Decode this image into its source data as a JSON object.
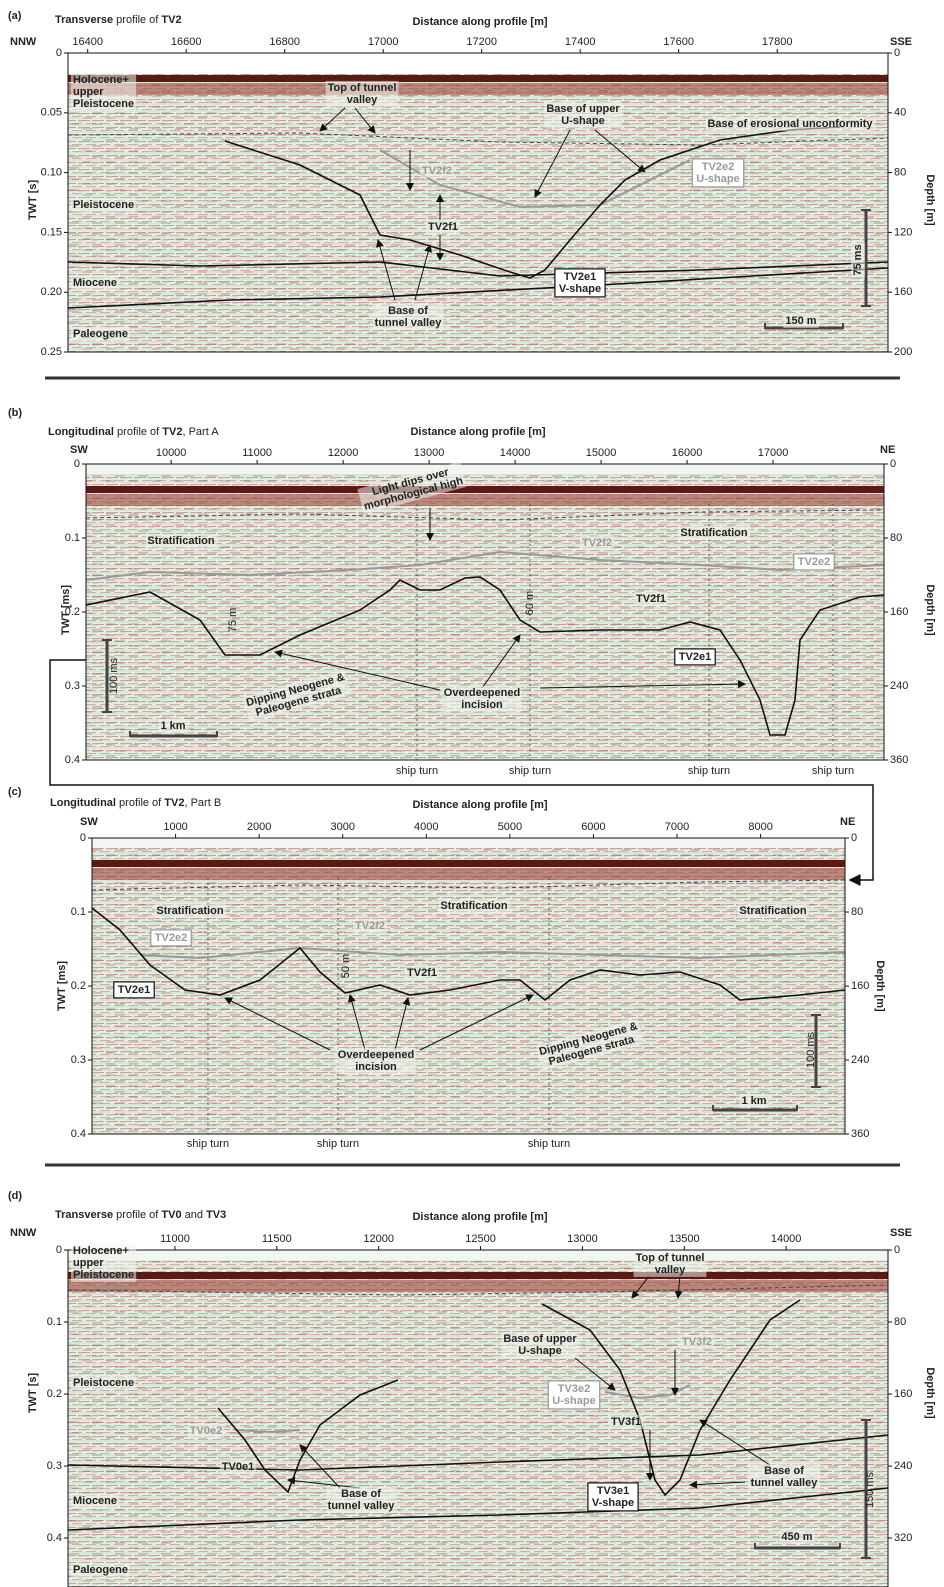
{
  "panels": [
    {
      "label": "(a)",
      "title": [
        {
          "text": "Transverse",
          "bold": true
        },
        {
          "text": " profile of ",
          "bold": false
        },
        {
          "text": "TV2",
          "bold": true
        }
      ],
      "x_label": "Distance along profile [m]",
      "left_end": "NNW",
      "right_end": "SSE",
      "xlim": [
        16360,
        18025
      ],
      "x_ticks": [
        16400,
        16600,
        16800,
        17000,
        17200,
        17400,
        17600,
        17800
      ],
      "y_label": "TWT [s]",
      "twt_lim": [
        0,
        0.25
      ],
      "y_ticks": [
        0,
        0.05,
        {
          "value": 0.1,
          "label": "0.10"
        },
        0.15,
        {
          "value": 0.2,
          "label": "0.20"
        },
        0.25
      ],
      "depth_label": "Depth [m]",
      "depth_ticks": [
        0,
        40,
        80,
        120,
        160,
        200
      ],
      "annotations": [
        {
          "lines": [
            "Holocene+",
            "upper",
            "Pleistocene"
          ],
          "style": "plain"
        },
        {
          "lines": [
            "Top of tunnel",
            "valley"
          ],
          "style": "plain"
        },
        {
          "lines": [
            "Base of upper",
            "U-shape"
          ],
          "style": "plain"
        },
        {
          "lines": [
            "Base of erosional unconformity"
          ],
          "style": "plain"
        },
        {
          "lines": [
            "TV2f2"
          ],
          "style": "gray"
        },
        {
          "lines": [
            "TV2e2",
            "U-shape"
          ],
          "style": "graybox"
        },
        {
          "lines": [
            "Pleistocene"
          ],
          "style": "plain"
        },
        {
          "lines": [
            "TV2f1"
          ],
          "style": "plain"
        },
        {
          "lines": [
            "Miocene"
          ],
          "style": "plain"
        },
        {
          "lines": [
            "TV2e1",
            "V-shape"
          ],
          "style": "box"
        },
        {
          "lines": [
            "Base of",
            "tunnel valley"
          ],
          "style": "plain"
        },
        {
          "lines": [
            "Paleogene"
          ],
          "style": "plain"
        },
        {
          "lines": [
            "75 ms"
          ],
          "style": "plain"
        },
        {
          "lines": [
            "150 m"
          ],
          "style": "plain"
        }
      ]
    },
    {
      "label": "(b)",
      "title": [
        {
          "text": "Longitudinal",
          "bold": true
        },
        {
          "text": " profile of ",
          "bold": false
        },
        {
          "text": "TV2",
          "bold": true
        },
        {
          "text": ", Part A",
          "bold": false
        }
      ],
      "x_label": "Distance along profile [m]",
      "left_end": "SW",
      "right_end": "NE",
      "xlim": [
        9010,
        18290
      ],
      "x_ticks": [
        10000,
        11000,
        12000,
        13000,
        14000,
        15000,
        16000,
        17000
      ],
      "y_label": "TWT [ms]",
      "twt_lim": [
        0,
        0.4
      ],
      "y_ticks": [
        0,
        0.1,
        0.2,
        0.3,
        0.4
      ],
      "depth_label": "Depth [m]",
      "depth_ticks": [
        0,
        80,
        160,
        240,
        360
      ],
      "ship_turns": [
        "ship turn",
        "ship turn",
        "ship turn",
        "ship turn"
      ],
      "annotations": [
        {
          "lines": [
            "Light dips over",
            "morphological high"
          ],
          "style": "plain"
        },
        {
          "lines": [
            "Stratification"
          ],
          "style": "plain"
        },
        {
          "lines": [
            "Stratification"
          ],
          "style": "plain"
        },
        {
          "lines": [
            "TV2f2"
          ],
          "style": "gray"
        },
        {
          "lines": [
            "TV2e2"
          ],
          "style": "graybox"
        },
        {
          "lines": [
            "75 m"
          ],
          "style": "thin"
        },
        {
          "lines": [
            "60 m"
          ],
          "style": "thin"
        },
        {
          "lines": [
            "TV2f1"
          ],
          "style": "plain"
        },
        {
          "lines": [
            "TV2e1"
          ],
          "style": "box"
        },
        {
          "lines": [
            "100 ms"
          ],
          "style": "thin"
        },
        {
          "lines": [
            "Dipping Neogene &",
            "Paleogene strata"
          ],
          "style": "plain"
        },
        {
          "lines": [
            "Overdeepened",
            "incision"
          ],
          "style": "plain"
        },
        {
          "lines": [
            "1 km"
          ],
          "style": "plain"
        }
      ]
    },
    {
      "label": "(c)",
      "title": [
        {
          "text": "Longitudinal",
          "bold": true
        },
        {
          "text": " profile of ",
          "bold": false
        },
        {
          "text": "TV2",
          "bold": true
        },
        {
          "text": ", Part B",
          "bold": false
        }
      ],
      "x_label": "Distance along profile [m]",
      "left_end": "SW",
      "right_end": "NE",
      "xlim": [
        0,
        9010
      ],
      "x_ticks": [
        1000,
        2000,
        3000,
        4000,
        5000,
        6000,
        7000,
        8000
      ],
      "y_label": "TWT [ms]",
      "twt_lim": [
        0,
        0.4
      ],
      "y_ticks": [
        0,
        0.1,
        0.2,
        0.3,
        0.4
      ],
      "depth_label": "Depth [m]",
      "depth_ticks": [
        0,
        80,
        160,
        240,
        360
      ],
      "ship_turns": [
        "ship turn",
        "ship turn",
        "ship turn"
      ],
      "annotations": [
        {
          "lines": [
            "Stratification"
          ],
          "style": "plain"
        },
        {
          "lines": [
            "Stratification"
          ],
          "style": "plain"
        },
        {
          "lines": [
            "Stratification"
          ],
          "style": "plain"
        },
        {
          "lines": [
            "TV2e2"
          ],
          "style": "graybox"
        },
        {
          "lines": [
            "TV2f2"
          ],
          "style": "gray"
        },
        {
          "lines": [
            "50 m"
          ],
          "style": "thin"
        },
        {
          "lines": [
            "TV2f1"
          ],
          "style": "plain"
        },
        {
          "lines": [
            "TV2e1"
          ],
          "style": "box"
        },
        {
          "lines": [
            "Overdeepened",
            "incision"
          ],
          "style": "plain"
        },
        {
          "lines": [
            "Dipping Neogene &",
            "Paleogene strata"
          ],
          "style": "plain"
        },
        {
          "lines": [
            "100 ms"
          ],
          "style": "thin"
        },
        {
          "lines": [
            "1 km"
          ],
          "style": "plain"
        }
      ]
    },
    {
      "label": "(d)",
      "title": [
        {
          "text": "Transverse",
          "bold": true
        },
        {
          "text": " profile of ",
          "bold": false
        },
        {
          "text": "TV0",
          "bold": true
        },
        {
          "text": " and ",
          "bold": false
        },
        {
          "text": "TV3",
          "bold": true
        }
      ],
      "x_label": "Distance along profile [m]",
      "left_end": "NNW",
      "right_end": "SSE",
      "xlim": [
        10475,
        14500
      ],
      "x_ticks": [
        11000,
        11500,
        12000,
        12500,
        13000,
        13500,
        14000
      ],
      "y_label": "TWT [s]",
      "twt_lim": [
        0,
        0.468
      ],
      "y_ticks": [
        0,
        0.1,
        0.2,
        0.3,
        0.4
      ],
      "depth_label": "Depth [m]",
      "depth_ticks": [
        0,
        80,
        160,
        240,
        320
      ],
      "annotations": [
        {
          "lines": [
            "Holocene+",
            "upper",
            "Pleistocene"
          ],
          "style": "plain"
        },
        {
          "lines": [
            "Top of tunnel",
            "valley"
          ],
          "style": "plain"
        },
        {
          "lines": [
            "TV3f2"
          ],
          "style": "gray"
        },
        {
          "lines": [
            "Base of upper",
            "U-shape"
          ],
          "style": "plain"
        },
        {
          "lines": [
            "Pleistocene"
          ],
          "style": "plain"
        },
        {
          "lines": [
            "TV3e2",
            "U-shape"
          ],
          "style": "graybox"
        },
        {
          "lines": [
            "TV0e2"
          ],
          "style": "gray"
        },
        {
          "lines": [
            "TV3f1"
          ],
          "style": "plain"
        },
        {
          "lines": [
            "TV0e1"
          ],
          "style": "plain"
        },
        {
          "lines": [
            "Base of",
            "tunnel valley"
          ],
          "style": "plain"
        },
        {
          "lines": [
            "Miocene"
          ],
          "style": "plain"
        },
        {
          "lines": [
            "TV3e1",
            "V-shape"
          ],
          "style": "box"
        },
        {
          "lines": [
            "Base of",
            "tunnel valley"
          ],
          "style": "plain"
        },
        {
          "lines": [
            "150 ms"
          ],
          "style": "thin"
        },
        {
          "lines": [
            "450 m"
          ],
          "style": "plain"
        },
        {
          "lines": [
            "Paleogene"
          ],
          "style": "plain"
        }
      ]
    }
  ]
}
